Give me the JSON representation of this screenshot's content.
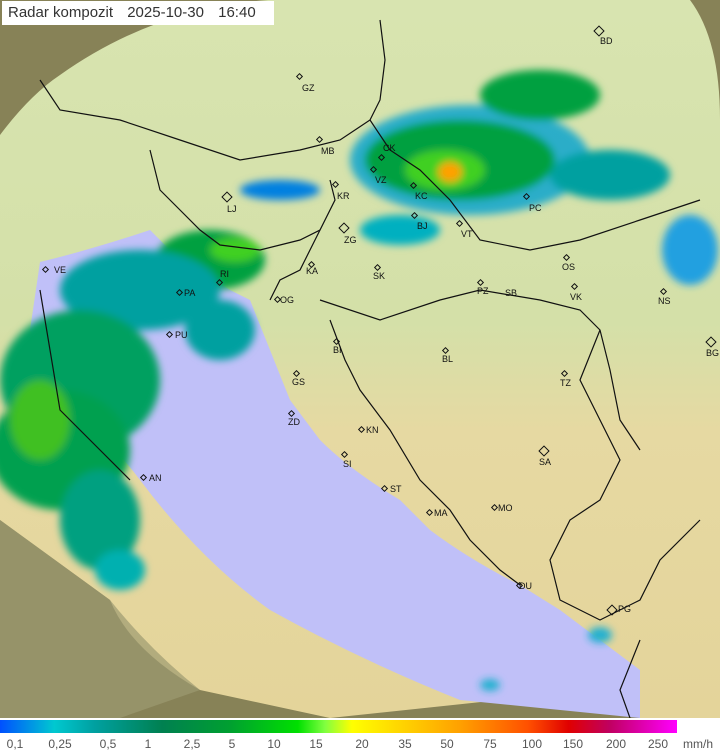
{
  "title": {
    "label": "Radar kompozit",
    "date": "2025-10-30",
    "time": "16:40"
  },
  "colors": {
    "sea": "#c0c0f8",
    "land_north": "#cfe0a8",
    "land_south": "#e6d9a2",
    "outside_coverage": "#878257",
    "border": "#111111"
  },
  "cities": [
    "GZ",
    "MB",
    "CK",
    "VZ",
    "KC",
    "KR",
    "LJ",
    "ZG",
    "BJ",
    "VT",
    "PC",
    "BD",
    "VE",
    "RI",
    "PA",
    "PU",
    "OG",
    "KA",
    "SK",
    "PZ",
    "SB",
    "OS",
    "VK",
    "NS",
    "BG",
    "BI",
    "BL",
    "TZ",
    "GS",
    "ZD",
    "KN",
    "SI",
    "ST",
    "SA",
    "AN",
    "MA",
    "MO",
    "DU",
    "PG"
  ],
  "legend": {
    "ticks": [
      "0,1",
      "0,25",
      "0,5",
      "1",
      "2,5",
      "5",
      "10",
      "15",
      "20",
      "35",
      "50",
      "75",
      "100",
      "150",
      "200",
      "250"
    ],
    "unit": "mm/h"
  }
}
